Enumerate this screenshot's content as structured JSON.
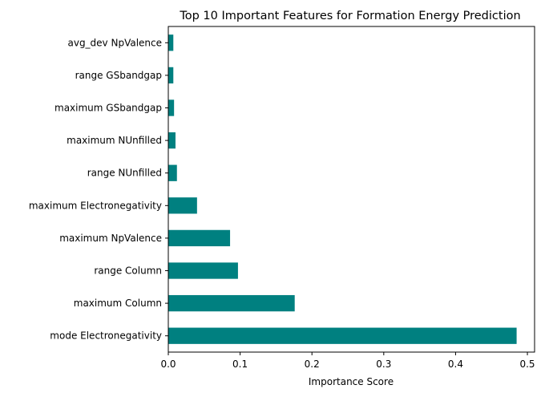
{
  "chart_data": {
    "type": "bar",
    "orientation": "horizontal",
    "title": "Top 10 Important Features for Formation Energy Prediction",
    "xlabel": "Importance Score",
    "ylabel": "",
    "xlim": [
      0,
      0.51
    ],
    "xticks": [
      0.0,
      0.1,
      0.2,
      0.3,
      0.4,
      0.5
    ],
    "xtick_labels": [
      "0.0",
      "0.1",
      "0.2",
      "0.3",
      "0.4",
      "0.5"
    ],
    "grid": false,
    "bar_color": "#008080",
    "categories": [
      "mode Electronegativity",
      "maximum Column",
      "range Column",
      "maximum NpValence",
      "maximum Electronegativity",
      "range NUnfilled",
      "maximum NUnfilled",
      "maximum GSbandgap",
      "range GSbandgap",
      "avg_dev NpValence"
    ],
    "values": [
      0.485,
      0.176,
      0.097,
      0.086,
      0.04,
      0.012,
      0.01,
      0.008,
      0.007,
      0.007
    ]
  }
}
